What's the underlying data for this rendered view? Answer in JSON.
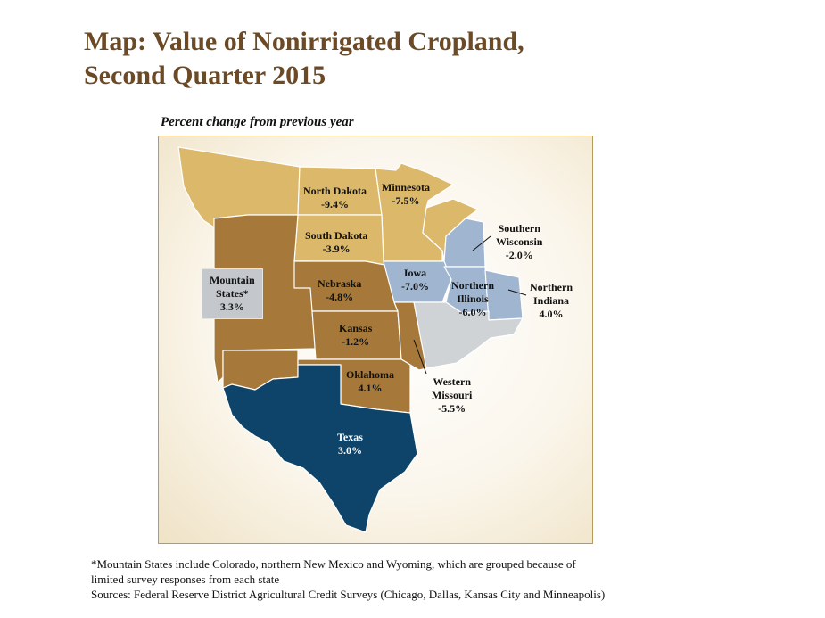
{
  "title_line1": "Map: Value of Nonirrigated Cropland,",
  "title_line2": "Second Quarter 2015",
  "subtitle": "Percent change from previous year",
  "colors": {
    "decline_strong": "#dcb86a",
    "decline_moderate": "#9fb5d0",
    "decline_light": "#cfd3d6",
    "change_brown": "#a6783a",
    "gain": "#0e4469"
  },
  "regions": {
    "north_dakota": {
      "name": "North Dakota",
      "value": "-9.4%"
    },
    "minnesota": {
      "name": "Minnesota",
      "value": "-7.5%"
    },
    "south_dakota": {
      "name": "South Dakota",
      "value": "-3.9%"
    },
    "southern_wisconsin": {
      "name_line1": "Southern",
      "name_line2": "Wisconsin",
      "value": "-2.0%"
    },
    "mountain_states": {
      "name_line1": "Mountain",
      "name_line2": "States*",
      "value": "3.3%"
    },
    "nebraska": {
      "name": "Nebraska",
      "value": "-4.8%"
    },
    "iowa": {
      "name": "Iowa",
      "value": "-7.0%"
    },
    "northern_illinois": {
      "name_line1": "Northern",
      "name_line2": "Illinois",
      "value": "-6.0%"
    },
    "northern_indiana": {
      "name_line1": "Northern",
      "name_line2": "Indiana",
      "value": "4.0%"
    },
    "kansas": {
      "name": "Kansas",
      "value": "-1.2%"
    },
    "oklahoma": {
      "name": "Oklahoma",
      "value": "4.1%"
    },
    "western_missouri": {
      "name_line1": "Western",
      "name_line2": "Missouri",
      "value": "-5.5%"
    },
    "texas": {
      "name": "Texas",
      "value": "3.0%"
    }
  },
  "footnote": {
    "line1": "*Mountain States include Colorado, northern New Mexico and Wyoming, which are grouped because of",
    "line2": "limited survey responses from each state",
    "line3": "Sources:  Federal Reserve District Agricultural Credit Surveys (Chicago, Dallas, Kansas City and Minneapolis)"
  }
}
